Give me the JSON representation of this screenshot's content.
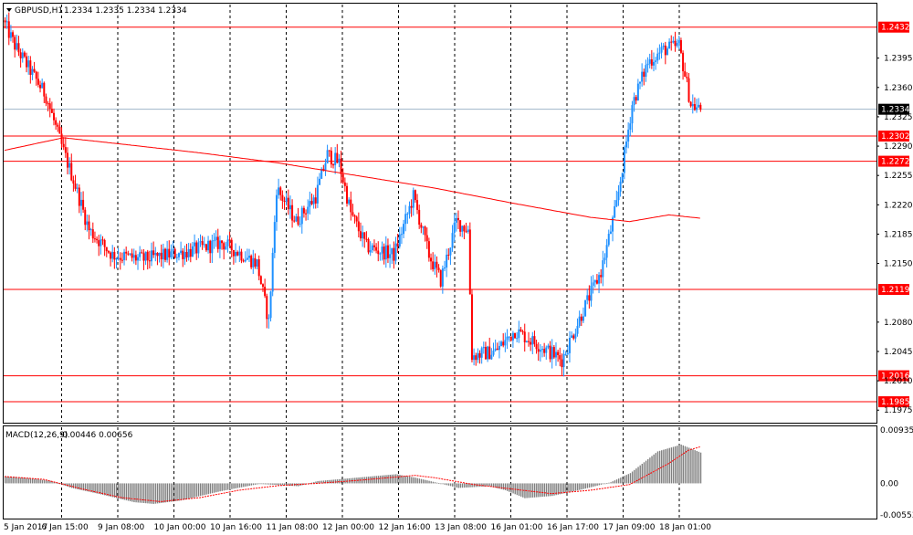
{
  "header": {
    "symbol_timeframe": "GBPUSD,H1",
    "ohlc": "1.2334 1.2335 1.2334 1.2334"
  },
  "colors": {
    "bull": "#1e90ff",
    "bear": "#ff0000",
    "ma": "#ff0000",
    "level": "#ff0000",
    "current": "#9fb4c8",
    "grid": "#000000",
    "macd_hist": "#808080",
    "macd_signal": "#ff0000"
  },
  "chart_data": [
    {
      "type": "candlestick",
      "series_name": "GBPUSD,H1",
      "ylim": [
        1.196,
        1.246
      ],
      "y_ticks": [
        "1.2395",
        "1.2360",
        "1.2325",
        "1.2290",
        "1.2255",
        "1.2220",
        "1.2185",
        "1.2150",
        "1.2080",
        "1.2045",
        "1.2010",
        "1.1975"
      ],
      "x_ticks": [
        "5 Jan 2017",
        "6 Jan 15:00",
        "9 Jan 08:00",
        "10 Jan 00:00",
        "10 Jan 16:00",
        "11 Jan 08:00",
        "12 Jan 00:00",
        "12 Jan 16:00",
        "13 Jan 08:00",
        "16 Jan 01:00",
        "16 Jan 17:00",
        "17 Jan 09:00",
        "18 Jan 01:00"
      ],
      "levels": [
        "1.2432",
        "1.2302",
        "1.2272",
        "1.2119",
        "1.2016",
        "1.1985"
      ],
      "current_price": "1.2334",
      "price_anchors": [
        [
          0,
          1.244
        ],
        [
          6,
          1.241
        ],
        [
          14,
          1.238
        ],
        [
          22,
          1.235
        ],
        [
          30,
          1.229
        ],
        [
          36,
          1.225
        ],
        [
          44,
          1.219
        ],
        [
          56,
          1.216
        ],
        [
          72,
          1.2155
        ],
        [
          96,
          1.2165
        ],
        [
          112,
          1.2175
        ],
        [
          130,
          1.215
        ],
        [
          136,
          1.208
        ],
        [
          140,
          1.224
        ],
        [
          150,
          1.22
        ],
        [
          160,
          1.223
        ],
        [
          166,
          1.228
        ],
        [
          172,
          1.227
        ],
        [
          178,
          1.221
        ],
        [
          186,
          1.217
        ],
        [
          200,
          1.216
        ],
        [
          210,
          1.223
        ],
        [
          218,
          1.216
        ],
        [
          224,
          1.213
        ],
        [
          232,
          1.22
        ],
        [
          238,
          1.219
        ],
        [
          240,
          1.204
        ],
        [
          252,
          1.2045
        ],
        [
          262,
          1.207
        ],
        [
          276,
          1.205
        ],
        [
          286,
          1.2035
        ],
        [
          298,
          1.21
        ],
        [
          306,
          1.214
        ],
        [
          314,
          1.222
        ],
        [
          322,
          1.234
        ],
        [
          330,
          1.239
        ],
        [
          338,
          1.2405
        ],
        [
          346,
          1.241
        ],
        [
          352,
          1.234
        ],
        [
          356,
          1.2334
        ]
      ],
      "ma_anchors": [
        [
          0,
          1.2285
        ],
        [
          30,
          1.23
        ],
        [
          50,
          1.2295
        ],
        [
          100,
          1.2282
        ],
        [
          140,
          1.227
        ],
        [
          180,
          1.2255
        ],
        [
          220,
          1.224
        ],
        [
          260,
          1.2222
        ],
        [
          300,
          1.2205
        ],
        [
          320,
          1.22
        ],
        [
          340,
          1.2208
        ],
        [
          356,
          1.2204
        ]
      ]
    },
    {
      "type": "bar",
      "series_name": "MACD(12,26,9)",
      "label_values": "0.00446 0.00656",
      "ylim": [
        -0.00553,
        0.00935
      ],
      "y_ticks": [
        "0.00935",
        "0.00",
        "-0.00553"
      ],
      "hist_anchors": [
        [
          0,
          0.0012
        ],
        [
          10,
          0.001
        ],
        [
          24,
          0.0004
        ],
        [
          34,
          -0.0008
        ],
        [
          50,
          -0.002
        ],
        [
          66,
          -0.0033
        ],
        [
          76,
          -0.0036
        ],
        [
          90,
          -0.003
        ],
        [
          110,
          -0.0014
        ],
        [
          130,
          -0.0001
        ],
        [
          150,
          -0.0005
        ],
        [
          160,
          0.0004
        ],
        [
          180,
          0.001
        ],
        [
          200,
          0.0016
        ],
        [
          210,
          0.001
        ],
        [
          220,
          0.0002
        ],
        [
          232,
          -0.0008
        ],
        [
          248,
          -0.0005
        ],
        [
          256,
          -0.0012
        ],
        [
          266,
          -0.0026
        ],
        [
          280,
          -0.0022
        ],
        [
          296,
          -0.001
        ],
        [
          310,
          0.0002
        ],
        [
          320,
          0.0018
        ],
        [
          334,
          0.0056
        ],
        [
          346,
          0.0068
        ],
        [
          356,
          0.0054
        ]
      ],
      "signal_anchors": [
        [
          0,
          0.0012
        ],
        [
          20,
          0.0007
        ],
        [
          40,
          -0.001
        ],
        [
          60,
          -0.0025
        ],
        [
          80,
          -0.0032
        ],
        [
          100,
          -0.0025
        ],
        [
          120,
          -0.0012
        ],
        [
          140,
          -0.0004
        ],
        [
          160,
          0.0
        ],
        [
          180,
          0.0005
        ],
        [
          200,
          0.0011
        ],
        [
          210,
          0.0014
        ],
        [
          220,
          0.001
        ],
        [
          240,
          -0.0002
        ],
        [
          260,
          -0.001
        ],
        [
          280,
          -0.0018
        ],
        [
          300,
          -0.0012
        ],
        [
          320,
          -0.0002
        ],
        [
          340,
          0.0035
        ],
        [
          350,
          0.0058
        ],
        [
          356,
          0.0064
        ]
      ]
    }
  ]
}
